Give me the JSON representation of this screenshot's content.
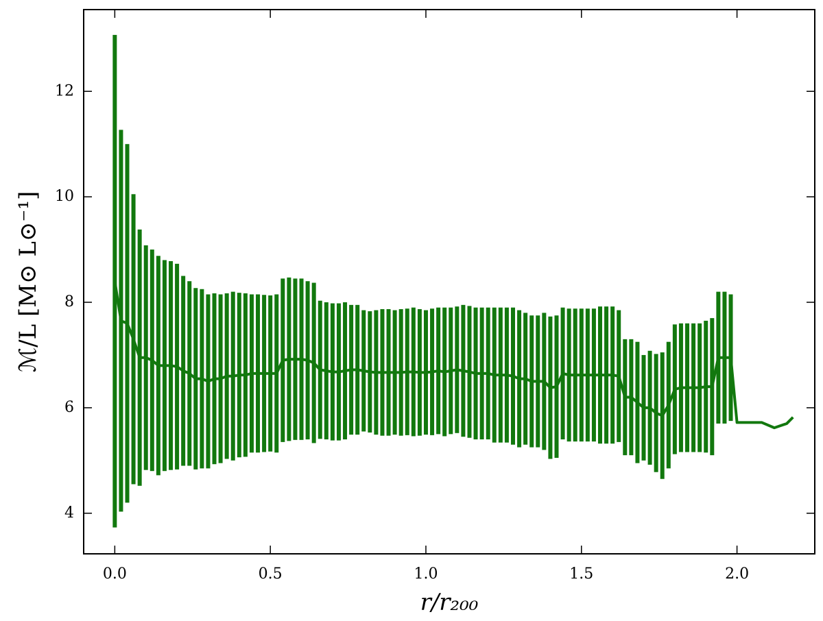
{
  "chart_data": {
    "type": "line",
    "xlabel": "r/r₂₀₀",
    "ylabel": "ℳ/L [M⊙ L⊙⁻¹]",
    "color": "#12780e",
    "xlim": [
      -0.1,
      2.25
    ],
    "ylim": [
      3.23,
      13.55
    ],
    "xticks": [
      {
        "value": 0,
        "label": "0.0"
      },
      0.5,
      {
        "value": 1,
        "label": "1.0"
      },
      1.5,
      {
        "value": 2,
        "label": "2.0"
      }
    ],
    "yticks": [
      4,
      6,
      8,
      10,
      12
    ],
    "x": [
      0,
      0.02,
      0.04,
      0.06,
      0.08,
      0.1,
      0.12,
      0.14,
      0.16,
      0.18,
      0.2,
      0.22,
      0.24,
      0.26,
      0.28,
      0.3,
      0.32,
      0.34,
      0.36,
      0.38,
      0.4,
      0.42,
      0.44,
      0.46,
      0.48,
      0.5,
      0.52,
      0.54,
      0.56,
      0.58,
      0.6,
      0.62,
      0.64,
      0.66,
      0.68,
      0.7,
      0.72,
      0.74,
      0.76,
      0.78,
      0.8,
      0.82,
      0.84,
      0.86,
      0.88,
      0.9,
      0.92,
      0.94,
      0.96,
      0.98,
      1.0,
      1.02,
      1.04,
      1.06,
      1.08,
      1.1,
      1.12,
      1.14,
      1.16,
      1.18,
      1.2,
      1.22,
      1.24,
      1.26,
      1.28,
      1.3,
      1.32,
      1.34,
      1.36,
      1.38,
      1.4,
      1.42,
      1.44,
      1.46,
      1.48,
      1.5,
      1.52,
      1.54,
      1.56,
      1.58,
      1.6,
      1.62,
      1.64,
      1.66,
      1.68,
      1.7,
      1.72,
      1.74,
      1.76,
      1.78,
      1.8,
      1.82,
      1.84,
      1.86,
      1.88,
      1.9,
      1.92,
      1.94,
      1.96,
      1.98,
      2.0,
      2.04,
      2.08,
      2.12,
      2.16,
      2.18
    ],
    "values": [
      8.4,
      7.65,
      7.6,
      7.3,
      6.95,
      6.95,
      6.9,
      6.8,
      6.8,
      6.8,
      6.78,
      6.7,
      6.65,
      6.55,
      6.55,
      6.5,
      6.55,
      6.55,
      6.6,
      6.6,
      6.62,
      6.62,
      6.65,
      6.65,
      6.65,
      6.65,
      6.65,
      6.9,
      6.92,
      6.92,
      6.92,
      6.9,
      6.85,
      6.72,
      6.7,
      6.68,
      6.68,
      6.7,
      6.72,
      6.72,
      6.7,
      6.68,
      6.67,
      6.67,
      6.67,
      6.67,
      6.67,
      6.68,
      6.68,
      6.67,
      6.67,
      6.68,
      6.7,
      6.68,
      6.7,
      6.72,
      6.7,
      6.68,
      6.65,
      6.65,
      6.65,
      6.62,
      6.62,
      6.62,
      6.6,
      6.55,
      6.55,
      6.5,
      6.5,
      6.5,
      6.38,
      6.4,
      6.65,
      6.62,
      6.62,
      6.62,
      6.62,
      6.62,
      6.62,
      6.62,
      6.62,
      6.6,
      6.2,
      6.2,
      6.1,
      6.0,
      6.0,
      5.9,
      5.85,
      6.05,
      6.35,
      6.38,
      6.38,
      6.38,
      6.38,
      6.4,
      6.4,
      6.95,
      6.95,
      6.95,
      5.72,
      5.72,
      5.72,
      5.62,
      5.7,
      5.82
    ],
    "errors": [
      4.67,
      3.62,
      3.4,
      2.75,
      2.43,
      2.13,
      2.1,
      2.08,
      2.0,
      1.98,
      1.95,
      1.8,
      1.75,
      1.72,
      1.7,
      1.65,
      1.62,
      1.6,
      1.57,
      1.6,
      1.56,
      1.55,
      1.5,
      1.5,
      1.49,
      1.48,
      1.5,
      1.55,
      1.55,
      1.53,
      1.53,
      1.5,
      1.52,
      1.31,
      1.3,
      1.3,
      1.3,
      1.3,
      1.23,
      1.23,
      1.15,
      1.15,
      1.18,
      1.2,
      1.2,
      1.18,
      1.2,
      1.2,
      1.22,
      1.2,
      1.18,
      1.2,
      1.2,
      1.22,
      1.2,
      1.2,
      1.25,
      1.25,
      1.25,
      1.25,
      1.25,
      1.28,
      1.28,
      1.28,
      1.3,
      1.3,
      1.25,
      1.25,
      1.25,
      1.3,
      1.35,
      1.35,
      1.25,
      1.26,
      1.26,
      1.26,
      1.26,
      1.26,
      1.3,
      1.3,
      1.3,
      1.25,
      1.1,
      1.1,
      1.15,
      1.0,
      1.08,
      1.12,
      1.2,
      1.2,
      1.23,
      1.22,
      1.22,
      1.22,
      1.22,
      1.25,
      1.3,
      1.25,
      1.25,
      1.2,
      null,
      null,
      null,
      null,
      null,
      null
    ]
  }
}
